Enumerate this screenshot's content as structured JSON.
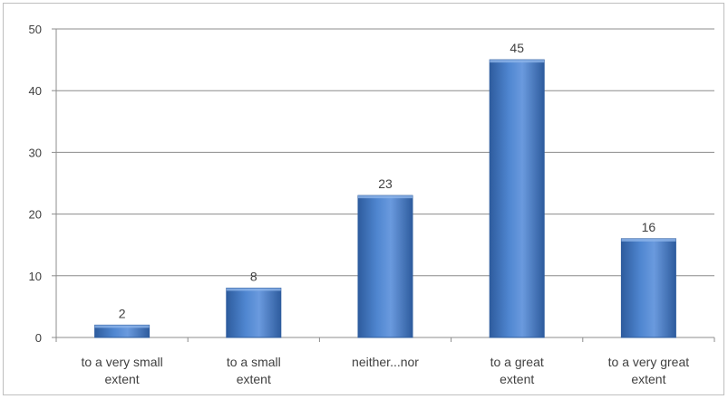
{
  "chart_data": {
    "type": "bar",
    "categories": [
      [
        "to a very small",
        "extent"
      ],
      [
        "to a small",
        "extent"
      ],
      [
        "neither...nor"
      ],
      [
        "to a great",
        "extent"
      ],
      [
        "to a very great",
        "extent"
      ]
    ],
    "values": [
      2,
      8,
      23,
      45,
      16
    ],
    "ylim": [
      0,
      50
    ],
    "yticks": [
      0,
      10,
      20,
      30,
      40,
      50
    ],
    "grid": true,
    "legend": "none",
    "colors": {
      "bar_light": "#7aa6e0",
      "bar_mid": "#4a7ec6",
      "bar_dark": "#2e5c9e",
      "grid": "#8c8c8c",
      "text": "#404040"
    }
  }
}
